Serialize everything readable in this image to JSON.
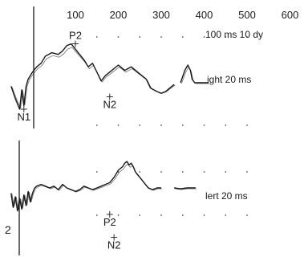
{
  "colors": {
    "ink": "#1a1a1a",
    "dots": "#555555",
    "paper": "#ffffff"
  },
  "chart_data": {
    "type": "line",
    "x_unit": "ms",
    "x_ticks": [
      "100",
      "200",
      "300",
      "400",
      "500",
      "600"
    ],
    "x_range": [
      -50,
      600
    ],
    "grid": "dotted",
    "panels": [
      {
        "id": "upper",
        "caption_lines": [
          "100 ms 10 dy",
          "ight 20 ms"
        ],
        "peaks": [
          {
            "label": "P2",
            "x": 100,
            "y": -2.2
          },
          {
            "label": "N2",
            "x": 180,
            "y": 0.8
          },
          {
            "label": "N1",
            "x": -20,
            "y": 1.5
          }
        ],
        "series": [
          {
            "x": [
              -50,
              -40,
              -30,
              -25,
              -20,
              -15,
              -10,
              0,
              10,
              20,
              30,
              45,
              60,
              70,
              80,
              90,
              100,
              110,
              120,
              130,
              140,
              150,
              160,
              170,
              185,
              200,
              215,
              230,
              245,
              255,
              265,
              275,
              290,
              300,
              310,
              320,
              330
            ],
            "y": [
              0.2,
              0.9,
              1.5,
              0.4,
              1.3,
              0.2,
              -0.2,
              -0.6,
              -0.9,
              -1.1,
              -1.5,
              -1.7,
              -1.6,
              -1.8,
              -2.1,
              -2.2,
              -1.9,
              -1.6,
              -1.3,
              -0.9,
              -1.1,
              -0.6,
              -0.1,
              -0.4,
              -0.7,
              -1.0,
              -0.7,
              -0.9,
              -0.6,
              -0.4,
              -0.2,
              0.3,
              0.5,
              0.6,
              0.5,
              0.3,
              0.1
            ]
          },
          {
            "x": [
              345,
              355,
              362,
              368,
              372,
              378,
              395,
              410
            ],
            "y": [
              0.0,
              -0.7,
              -1.0,
              -0.7,
              -0.2,
              0.0,
              0.0,
              0.0
            ]
          }
        ]
      },
      {
        "id": "lower",
        "axis_label": "2",
        "caption_lines": [
          "lert 20 ms"
        ],
        "peaks": [
          {
            "label": "P2",
            "x": 180,
            "y": 1.5
          },
          {
            "label": "N2",
            "x": 190,
            "y": 2.8
          }
        ],
        "series": [
          {
            "x": [
              -50,
              -45,
              -40,
              -35,
              -30,
              -25,
              -20,
              -15,
              -10,
              -5,
              0,
              5,
              10,
              20,
              30,
              40,
              50,
              60,
              70,
              80,
              90,
              100,
              110,
              120,
              130,
              140,
              150,
              160,
              170,
              180,
              190,
              200,
              210,
              215,
              220,
              225,
              230,
              235,
              240,
              250,
              260,
              270,
              280,
              290,
              300
            ],
            "y": [
              0.3,
              1.1,
              0.5,
              1.3,
              0.6,
              1.2,
              0.4,
              1.0,
              0.2,
              0.8,
              0.3,
              0.0,
              -0.1,
              -0.2,
              -0.1,
              0.0,
              -0.1,
              0.1,
              -0.2,
              0.0,
              0.1,
              0.2,
              0.1,
              -0.1,
              0.0,
              0.1,
              0.0,
              -0.1,
              -0.2,
              -0.3,
              -0.6,
              -1.0,
              -1.2,
              -1.4,
              -1.5,
              -1.3,
              -1.4,
              -1.2,
              -0.9,
              -0.6,
              -0.3,
              0.0,
              0.1,
              0.0,
              0.0
            ]
          },
          {
            "x": [
              330,
              345,
              360,
              380
            ],
            "y": [
              0.0,
              0.05,
              0.0,
              0.0
            ]
          }
        ]
      }
    ]
  }
}
